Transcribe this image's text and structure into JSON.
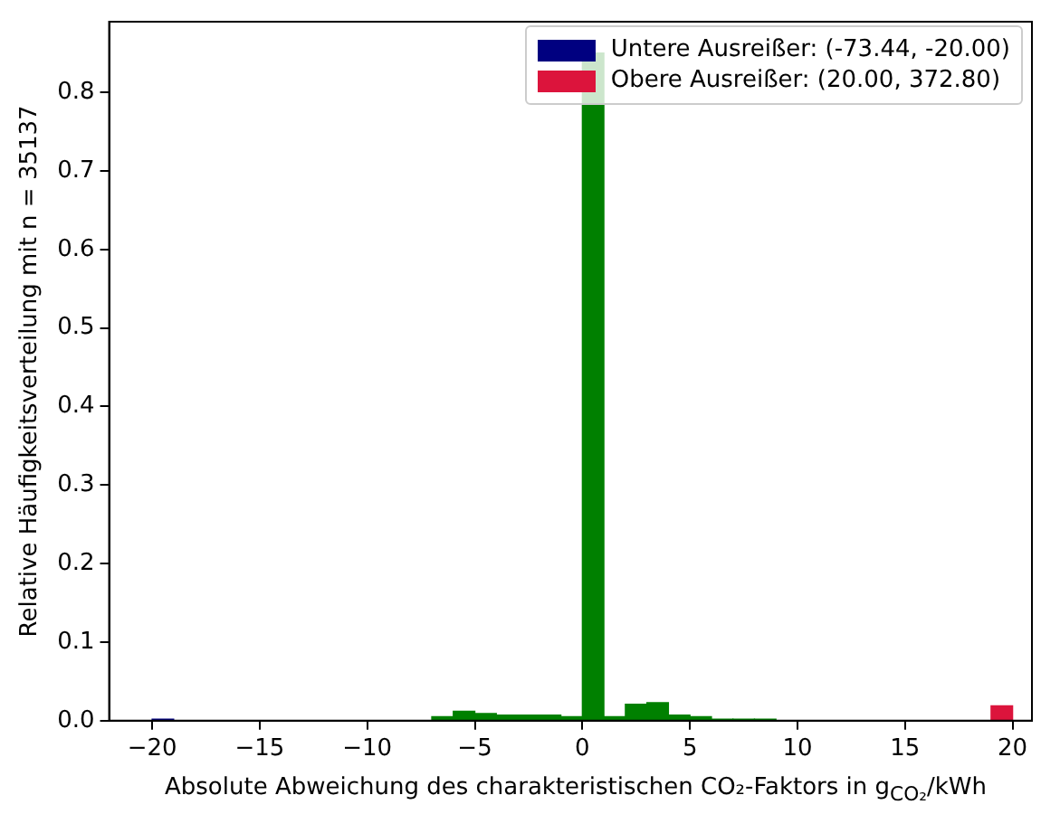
{
  "chart_data": {
    "type": "histogram",
    "ylabel": "Relative Häufigkeitsverteilung mit n = 35137",
    "xlabel": "Absolute Abweichung des charakteristischen CO₂-Faktors in g$_{CO₂}$/kWh",
    "bins": [
      -20,
      -19,
      -18,
      -17,
      -16,
      -15,
      -14,
      -13,
      -12,
      -11,
      -10,
      -9,
      -8,
      -7,
      -6,
      -5,
      -4,
      -3,
      -2,
      -1,
      0,
      1,
      2,
      3,
      4,
      5,
      6,
      7,
      8,
      9,
      10,
      11,
      12,
      13,
      14,
      15,
      16,
      17,
      18,
      19,
      20
    ],
    "series": [
      {
        "color": "#008000",
        "values": [
          null,
          null,
          null,
          null,
          null,
          null,
          null,
          null,
          null,
          null,
          null,
          null,
          null,
          0.005,
          0.012,
          0.009,
          0.007,
          0.007,
          0.007,
          0.005,
          0.85,
          0.005,
          0.021,
          0.023,
          0.007,
          0.005,
          0.002,
          0.002,
          0.002,
          null,
          null,
          null,
          null,
          null,
          null,
          null,
          null,
          null,
          null,
          null
        ]
      },
      {
        "name": "Untere Ausreißer: (-73.44, -20.00)",
        "color": "#000080",
        "values": [
          0.002,
          null,
          null,
          null,
          null,
          null,
          null,
          null,
          null,
          null,
          null,
          null,
          null,
          null,
          null,
          null,
          null,
          null,
          null,
          null,
          null,
          null,
          null,
          null,
          null,
          null,
          null,
          null,
          null,
          null,
          null,
          null,
          null,
          null,
          null,
          null,
          null,
          null,
          null,
          null
        ]
      },
      {
        "name": "Obere Ausreißer: (20.00, 372.80)",
        "color": "#dc143c",
        "values": [
          null,
          null,
          null,
          null,
          null,
          null,
          null,
          null,
          null,
          null,
          null,
          null,
          null,
          null,
          null,
          null,
          null,
          null,
          null,
          null,
          null,
          null,
          null,
          null,
          null,
          null,
          null,
          null,
          null,
          null,
          null,
          null,
          null,
          null,
          null,
          null,
          null,
          null,
          null,
          0.019
        ]
      }
    ],
    "xlim": [
      -22,
      20.9
    ],
    "ylim": [
      0,
      0.89
    ],
    "xticks": [
      {
        "value": -20,
        "label": "−20"
      },
      {
        "value": -15,
        "label": "−15"
      },
      {
        "value": -10,
        "label": "−10"
      },
      {
        "value": -5,
        "label": "−5"
      },
      0,
      5,
      10,
      15,
      20
    ],
    "yticks": [
      {
        "value": 0,
        "label": "0.0"
      },
      0.1,
      0.2,
      0.3,
      0.4,
      0.5,
      0.6,
      0.7,
      0.8
    ],
    "legend": "top right",
    "grid": false
  }
}
